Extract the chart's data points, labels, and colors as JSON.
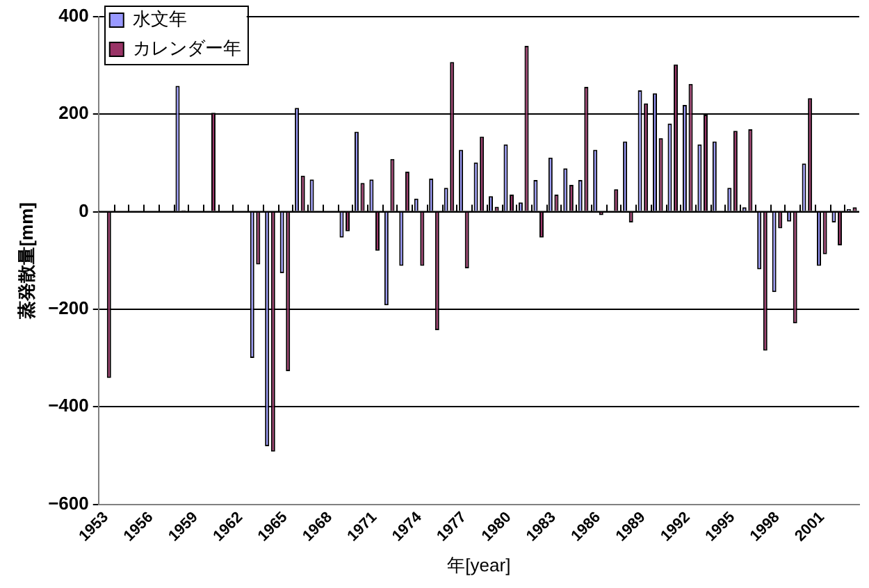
{
  "chart_data": {
    "type": "bar",
    "xlabel": "年[year]",
    "ylabel": "蒸発散量[mm]",
    "categories": [
      "1953",
      null,
      null,
      "1956",
      null,
      null,
      "1959",
      null,
      null,
      "1962",
      null,
      null,
      "1965",
      null,
      null,
      "1968",
      null,
      null,
      "1971",
      null,
      null,
      "1974",
      null,
      null,
      "1977",
      null,
      null,
      "1980",
      null,
      null,
      "1983",
      null,
      null,
      "1986",
      null,
      null,
      "1989",
      null,
      null,
      "1992",
      null,
      null,
      "1995",
      null,
      null,
      "1998",
      null,
      null,
      "2001",
      null,
      null
    ],
    "series": [
      {
        "name": "水文年",
        "color": "#9999ff",
        "values": [
          0,
          0,
          0,
          0,
          0,
          258,
          0,
          0,
          0,
          0,
          -300,
          -481,
          -126,
          213,
          66,
          0,
          -53,
          164,
          66,
          -192,
          -111,
          27,
          68,
          49,
          127,
          101,
          32,
          138,
          19,
          65,
          111,
          89,
          65,
          127,
          null,
          144,
          249,
          243,
          181,
          219,
          138,
          144,
          49,
          9,
          -118,
          -165,
          -20,
          99,
          -111,
          -22,
          5
        ]
      },
      {
        "name": "カレンダー年",
        "color": "#993366",
        "values": [
          -341,
          0,
          0,
          0,
          0,
          3,
          0,
          203,
          0,
          0,
          -108,
          -492,
          -327,
          74,
          2,
          0,
          -40,
          59,
          -80,
          108,
          82,
          -111,
          -243,
          307,
          -116,
          154,
          10,
          35,
          340,
          -53,
          35,
          55,
          256,
          -7,
          46,
          -22,
          222,
          151,
          302,
          262,
          199,
          0,
          166,
          169,
          -285,
          -34,
          -229,
          233,
          -87,
          -69,
          9
        ]
      }
    ],
    "ylim": [
      -600,
      400
    ],
    "yticks": [
      -600,
      -400,
      -200,
      0,
      200,
      400
    ],
    "grid": "y",
    "legend": "top left"
  }
}
